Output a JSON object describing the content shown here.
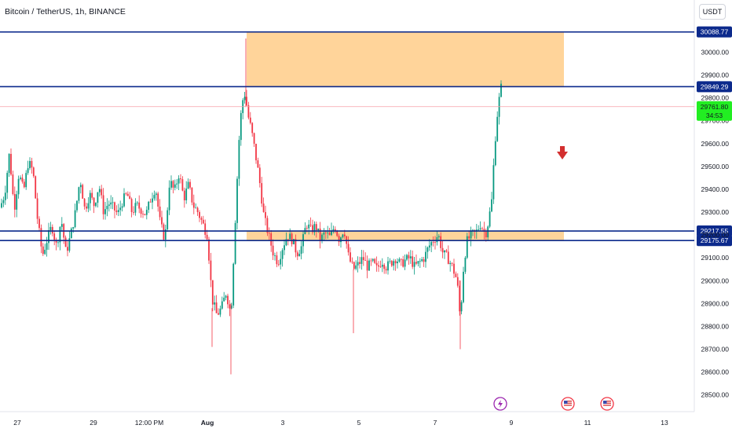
{
  "header": {
    "symbol_title": "Bitcoin / TetherUS, 1h, BINANCE",
    "currency_button": "USDT"
  },
  "colors": {
    "up": "#089981",
    "down": "#f23645",
    "level_line": "#0c2a8c",
    "level_label_bg": "#0c2a8c",
    "zone_fill": "#ffcc88",
    "current_price_bg": "#22ee22",
    "arrow": "#d32f2f",
    "event_lightning": "#9c27b0"
  },
  "chart_data": {
    "type": "candlestick",
    "title": "Bitcoin / TetherUS, 1h, BINANCE",
    "ylim": [
      28450,
      30130
    ],
    "y_ticks": [
      "30000.00",
      "29900.00",
      "29800.00",
      "29700.00",
      "29600.00",
      "29500.00",
      "29400.00",
      "29300.00",
      "29200.00",
      "29100.00",
      "29000.00",
      "28900.00",
      "28800.00",
      "28700.00",
      "28600.00",
      "28500.00"
    ],
    "x_ticks": [
      "27",
      "29",
      "12:00 PM",
      "Aug",
      "3",
      "5",
      "7",
      "9",
      "11",
      "13"
    ],
    "levels": [
      {
        "label": "30088.77",
        "price": 30088.77
      },
      {
        "label": "29849.29",
        "price": 29849.29
      },
      {
        "label": "29217.55",
        "price": 29217.55
      },
      {
        "label": "29175.67",
        "price": 29175.67
      }
    ],
    "zones": [
      {
        "from_price": 29849.29,
        "to_price": 30088.77,
        "x_start_label": "Aug",
        "x_end_label": "11"
      },
      {
        "from_price": 29175.67,
        "to_price": 29217.55,
        "x_start_label": "Aug",
        "x_end_label": "11"
      }
    ],
    "current_price": {
      "value": "29761.80",
      "countdown": "34:53"
    },
    "price_path": [
      [
        0,
        29320
      ],
      [
        6,
        29380
      ],
      [
        12,
        29560
      ],
      [
        18,
        29310
      ],
      [
        24,
        29470
      ],
      [
        30,
        29390
      ],
      [
        36,
        29520
      ],
      [
        42,
        29480
      ],
      [
        48,
        29260
      ],
      [
        54,
        29110
      ],
      [
        60,
        29180
      ],
      [
        66,
        29240
      ],
      [
        72,
        29150
      ],
      [
        78,
        29270
      ],
      [
        84,
        29120
      ],
      [
        90,
        29200
      ],
      [
        96,
        29300
      ],
      [
        102,
        29450
      ],
      [
        108,
        29310
      ],
      [
        114,
        29380
      ],
      [
        120,
        29330
      ],
      [
        126,
        29420
      ],
      [
        132,
        29300
      ],
      [
        138,
        29340
      ],
      [
        144,
        29320
      ],
      [
        150,
        29290
      ],
      [
        156,
        29350
      ],
      [
        162,
        29380
      ],
      [
        168,
        29300
      ],
      [
        174,
        29330
      ],
      [
        180,
        29310
      ],
      [
        186,
        29290
      ],
      [
        192,
        29360
      ],
      [
        198,
        29410
      ],
      [
        204,
        29250
      ],
      [
        210,
        29180
      ],
      [
        216,
        29440
      ],
      [
        222,
        29390
      ],
      [
        228,
        29470
      ],
      [
        234,
        29360
      ],
      [
        240,
        29420
      ],
      [
        246,
        29330
      ],
      [
        252,
        29300
      ],
      [
        258,
        29250
      ],
      [
        264,
        29200
      ],
      [
        270,
        28920
      ],
      [
        276,
        28850
      ],
      [
        282,
        28880
      ],
      [
        288,
        28950
      ],
      [
        294,
        28850
      ],
      [
        300,
        29300
      ],
      [
        304,
        29600
      ],
      [
        308,
        29780
      ],
      [
        312,
        29820
      ],
      [
        316,
        29720
      ],
      [
        320,
        29660
      ],
      [
        324,
        29580
      ],
      [
        330,
        29450
      ],
      [
        336,
        29280
      ],
      [
        342,
        29200
      ],
      [
        348,
        29120
      ],
      [
        354,
        29080
      ],
      [
        360,
        29150
      ],
      [
        366,
        29200
      ],
      [
        372,
        29180
      ],
      [
        378,
        29120
      ],
      [
        384,
        29150
      ],
      [
        390,
        29250
      ],
      [
        396,
        29220
      ],
      [
        402,
        29240
      ],
      [
        408,
        29180
      ],
      [
        414,
        29210
      ],
      [
        420,
        29190
      ],
      [
        426,
        29240
      ],
      [
        432,
        29180
      ],
      [
        438,
        29230
      ],
      [
        444,
        29100
      ],
      [
        450,
        29050
      ],
      [
        456,
        29070
      ],
      [
        462,
        29100
      ],
      [
        468,
        29060
      ],
      [
        474,
        29080
      ],
      [
        480,
        29050
      ],
      [
        486,
        29090
      ],
      [
        492,
        29060
      ],
      [
        498,
        29080
      ],
      [
        504,
        29100
      ],
      [
        510,
        29070
      ],
      [
        516,
        29090
      ],
      [
        522,
        29100
      ],
      [
        528,
        29060
      ],
      [
        534,
        29080
      ],
      [
        540,
        29100
      ],
      [
        546,
        29150
      ],
      [
        552,
        29180
      ],
      [
        558,
        29200
      ],
      [
        564,
        29120
      ],
      [
        570,
        29100
      ],
      [
        576,
        29060
      ],
      [
        582,
        29000
      ],
      [
        586,
        28830
      ],
      [
        590,
        29050
      ],
      [
        594,
        29170
      ],
      [
        600,
        29200
      ],
      [
        606,
        29210
      ],
      [
        612,
        29250
      ],
      [
        618,
        29200
      ],
      [
        622,
        29260
      ],
      [
        626,
        29350
      ],
      [
        630,
        29600
      ],
      [
        634,
        29760
      ],
      [
        638,
        29845
      ],
      [
        640,
        29761
      ]
    ],
    "annotations": [
      "down-arrow",
      "lightning-event",
      "us-flag-event",
      "us-flag-event"
    ]
  }
}
